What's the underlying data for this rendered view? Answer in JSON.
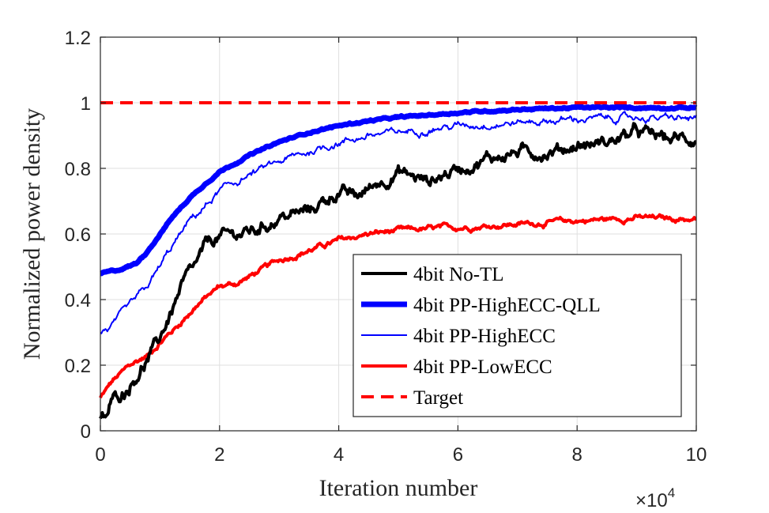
{
  "chart_data": {
    "type": "line",
    "title": "",
    "xlabel": "Iteration number",
    "ylabel": "Normalized power density",
    "x_multiplier": "×10",
    "x_multiplier_exp": "4",
    "xlim": [
      0,
      10
    ],
    "ylim": [
      0,
      1.2
    ],
    "xticks": [
      0,
      2,
      4,
      6,
      8,
      10
    ],
    "xtick_labels": [
      "0",
      "2",
      "4",
      "6",
      "8",
      "10"
    ],
    "yticks": [
      0,
      0.2,
      0.4,
      0.6,
      0.8,
      1,
      1.2
    ],
    "ytick_labels": [
      "0",
      "0.2",
      "0.4",
      "0.6",
      "0.8",
      "1",
      "1.2"
    ],
    "grid": true,
    "legend_position": "bottom-right",
    "series": [
      {
        "name": "4bit No-TL",
        "color": "#000000",
        "width": "thick",
        "dash": "solid",
        "noise": 0.014,
        "x": [
          0,
          0.1,
          0.2,
          0.4,
          0.6,
          0.8,
          1.0,
          1.2,
          1.4,
          1.6,
          1.8,
          2.0,
          2.3,
          2.6,
          3.0,
          3.5,
          4.0,
          4.3,
          4.6,
          5.0,
          5.5,
          6.0,
          6.5,
          7.0,
          7.5,
          8.0,
          8.5,
          9.0,
          9.5,
          10.0
        ],
        "y": [
          0.03,
          0.04,
          0.09,
          0.12,
          0.17,
          0.22,
          0.28,
          0.37,
          0.45,
          0.5,
          0.57,
          0.59,
          0.6,
          0.61,
          0.65,
          0.67,
          0.73,
          0.71,
          0.75,
          0.79,
          0.76,
          0.8,
          0.83,
          0.85,
          0.85,
          0.87,
          0.88,
          0.91,
          0.89,
          0.89
        ]
      },
      {
        "name": "4bit PP-HighECC-QLL",
        "color": "#0000ff",
        "width": "thick",
        "dash": "solid",
        "noise": 0.002,
        "x": [
          0,
          0.3,
          0.6,
          0.8,
          1.0,
          1.2,
          1.5,
          1.8,
          2.0,
          2.5,
          3.0,
          3.5,
          4.0,
          4.5,
          5.0,
          6.0,
          7.0,
          8.0,
          9.0,
          10.0
        ],
        "y": [
          0.48,
          0.49,
          0.51,
          0.55,
          0.6,
          0.65,
          0.71,
          0.76,
          0.79,
          0.84,
          0.88,
          0.91,
          0.93,
          0.945,
          0.955,
          0.97,
          0.98,
          0.985,
          0.985,
          0.985
        ]
      },
      {
        "name": "4bit PP-HighECC",
        "color": "#0000ff",
        "width": "thin",
        "dash": "solid",
        "noise": 0.008,
        "x": [
          0,
          0.2,
          0.4,
          0.6,
          0.8,
          1.0,
          1.2,
          1.5,
          1.8,
          2.0,
          2.5,
          3.0,
          3.5,
          4.0,
          4.5,
          5.0,
          6.0,
          7.0,
          8.0,
          9.0,
          10.0
        ],
        "y": [
          0.3,
          0.32,
          0.36,
          0.4,
          0.44,
          0.5,
          0.56,
          0.64,
          0.69,
          0.73,
          0.78,
          0.82,
          0.85,
          0.88,
          0.9,
          0.91,
          0.93,
          0.94,
          0.95,
          0.955,
          0.95
        ]
      },
      {
        "name": "4bit PP-LowECC",
        "color": "#ff0000",
        "width": "thick",
        "dash": "solid",
        "noise": 0.006,
        "x": [
          0,
          0.2,
          0.5,
          0.8,
          1.0,
          1.3,
          1.6,
          2.0,
          2.3,
          2.6,
          3.0,
          3.5,
          4.0,
          4.5,
          5.0,
          5.5,
          6.0,
          7.0,
          8.0,
          9.0,
          10.0
        ],
        "y": [
          0.1,
          0.15,
          0.2,
          0.23,
          0.27,
          0.32,
          0.38,
          0.44,
          0.45,
          0.48,
          0.52,
          0.55,
          0.58,
          0.6,
          0.61,
          0.615,
          0.62,
          0.63,
          0.64,
          0.65,
          0.645
        ]
      },
      {
        "name": "Target",
        "color": "#ff0000",
        "width": "thick",
        "dash": "dashed",
        "noise": 0,
        "x": [
          0,
          10
        ],
        "y": [
          1,
          1
        ]
      }
    ]
  }
}
